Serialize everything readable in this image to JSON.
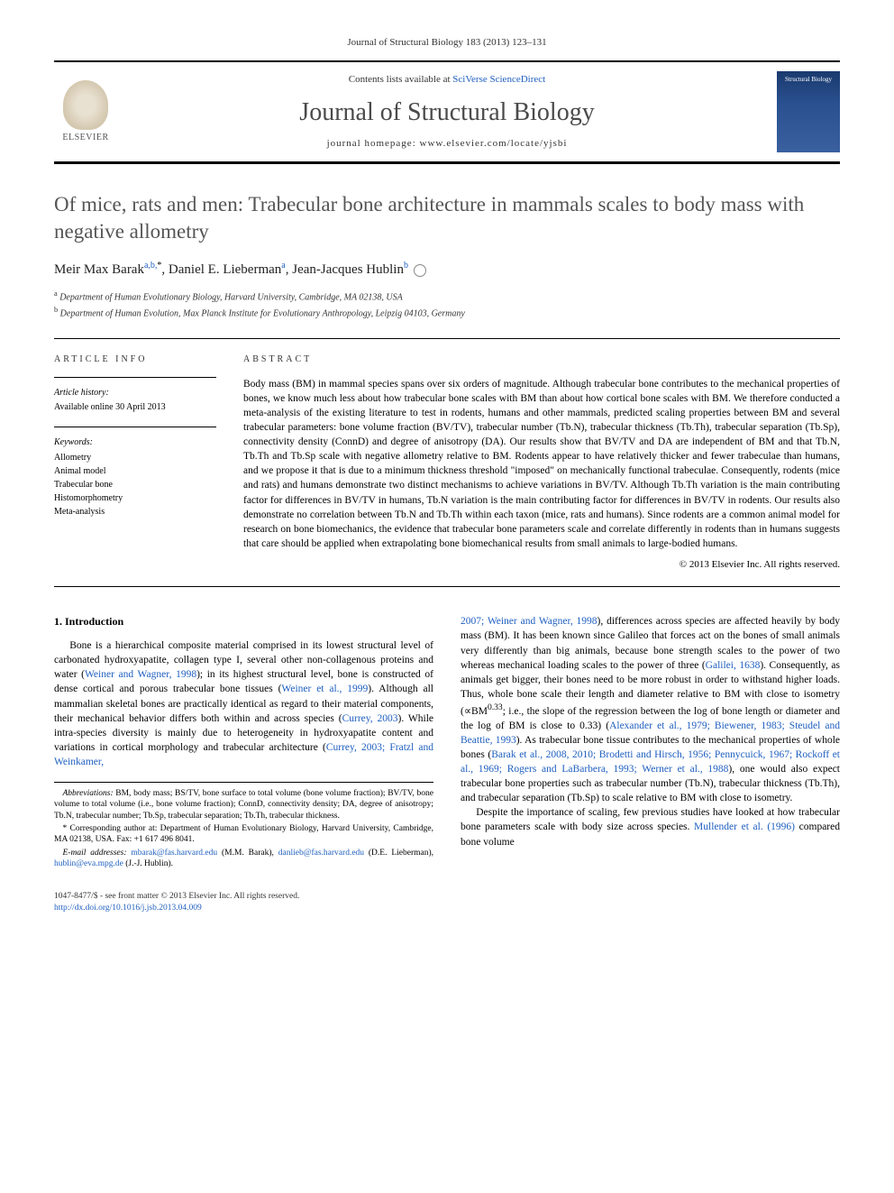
{
  "citation": "Journal of Structural Biology 183 (2013) 123–131",
  "banner": {
    "contents_line_prefix": "Contents lists available at ",
    "contents_line_link": "SciVerse ScienceDirect",
    "journal_name": "Journal of Structural Biology",
    "homepage_prefix": "journal homepage: ",
    "homepage_url": "www.elsevier.com/locate/yjsbi",
    "publisher_name": "ELSEVIER",
    "cover_label": "Structural Biology"
  },
  "article": {
    "title": "Of mice, rats and men: Trabecular bone architecture in mammals scales to body mass with negative allometry",
    "authors_html": "Meir Max Barak",
    "author1_name": "Meir Max Barak",
    "author1_aff": "a,b,",
    "author1_mark": "*",
    "author2_name": "Daniel E. Lieberman",
    "author2_aff": "a",
    "author3_name": "Jean-Jacques Hublin",
    "author3_aff": "b",
    "aff_a": "Department of Human Evolutionary Biology, Harvard University, Cambridge, MA 02138, USA",
    "aff_b": "Department of Human Evolution, Max Planck Institute for Evolutionary Anthropology, Leipzig 04103, Germany"
  },
  "info": {
    "section_label": "article info",
    "history_label": "Article history:",
    "history_text": "Available online 30 April 2013",
    "keywords_label": "Keywords:",
    "keywords": [
      "Allometry",
      "Animal model",
      "Trabecular bone",
      "Histomorphometry",
      "Meta-analysis"
    ]
  },
  "abstract": {
    "section_label": "abstract",
    "text": "Body mass (BM) in mammal species spans over six orders of magnitude. Although trabecular bone contributes to the mechanical properties of bones, we know much less about how trabecular bone scales with BM than about how cortical bone scales with BM. We therefore conducted a meta-analysis of the existing literature to test in rodents, humans and other mammals, predicted scaling properties between BM and several trabecular parameters: bone volume fraction (BV/TV), trabecular number (Tb.N), trabecular thickness (Tb.Th), trabecular separation (Tb.Sp), connectivity density (ConnD) and degree of anisotropy (DA). Our results show that BV/TV and DA are independent of BM and that Tb.N, Tb.Th and Tb.Sp scale with negative allometry relative to BM. Rodents appear to have relatively thicker and fewer trabeculae than humans, and we propose it that is due to a minimum thickness threshold \"imposed\" on mechanically functional trabeculae. Consequently, rodents (mice and rats) and humans demonstrate two distinct mechanisms to achieve variations in BV/TV. Although Tb.Th variation is the main contributing factor for differences in BV/TV in humans, Tb.N variation is the main contributing factor for differences in BV/TV in rodents. Our results also demonstrate no correlation between Tb.N and Tb.Th within each taxon (mice, rats and humans). Since rodents are a common animal model for research on bone biomechanics, the evidence that trabecular bone parameters scale and correlate differently in rodents than in humans suggests that care should be applied when extrapolating bone biomechanical results from small animals to large-bodied humans.",
    "copyright": "© 2013 Elsevier Inc. All rights reserved."
  },
  "body": {
    "section_heading": "1. Introduction",
    "para1_pre": "Bone is a hierarchical composite material comprised in its lowest structural level of carbonated hydroxyapatite, collagen type I, several other non-collagenous proteins and water (",
    "cite1": "Weiner and Wagner, 1998",
    "para1_mid1": "); in its highest structural level, bone is constructed of dense cortical and porous trabecular bone tissues (",
    "cite2": "Weiner et al., 1999",
    "para1_mid2": "). Although all mammalian skeletal bones are practically identical as regard to their material components, their mechanical behavior differs both within and across species (",
    "cite3": "Currey, 2003",
    "para1_mid3": "). While intra-species diversity is mainly due to heterogeneity in hydroxyapatite content and variations in cortical morphology and trabecular architecture (",
    "cite4": "Currey, 2003; Fratzl and Weinkamer,",
    "para2_pre": "",
    "cite5": "2007; Weiner and Wagner, 1998",
    "para2_mid1": "), differences across species are affected heavily by body mass (BM). It has been known since Galileo that forces act on the bones of small animals very differently than big animals, because bone strength scales to the power of two whereas mechanical loading scales to the power of three (",
    "cite6": "Galilei, 1638",
    "para2_mid2": "). Consequently, as animals get bigger, their bones need to be more robust in order to withstand higher loads. Thus, whole bone scale their length and diameter relative to BM with close to isometry (∝BM",
    "exp1": "0.33",
    "para2_mid3": "; i.e., the slope of the regression between the log of bone length or diameter and the log of BM is close to 0.33) (",
    "cite7": "Alexander et al., 1979; Biewener, 1983; Steudel and Beattie, 1993",
    "para2_mid4": "). As trabecular bone tissue contributes to the mechanical properties of whole bones (",
    "cite8": "Barak et al., 2008, 2010; Brodetti and Hirsch, 1956; Pennycuick, 1967; Rockoff et al., 1969; Rogers and LaBarbera, 1993; Werner et al., 1988",
    "para2_mid5": "), one would also expect trabecular bone properties such as trabecular number (Tb.N), trabecular thickness (Tb.Th), and trabecular separation (Tb.Sp) to scale relative to BM with close to isometry.",
    "para3_pre": "Despite the importance of scaling, few previous studies have looked at how trabecular bone parameters scale with body size across species. ",
    "cite9": "Mullender et al. (1996)",
    "para3_post": " compared bone volume"
  },
  "footnotes": {
    "abbrev_label": "Abbreviations:",
    "abbrev_text": " BM, body mass; BS/TV, bone surface to total volume (bone volume fraction); BV/TV, bone volume to total volume (i.e., bone volume fraction); ConnD, connectivity density; DA, degree of anisotropy; Tb.N, trabecular number; Tb.Sp, trabecular separation; Tb.Th, trabecular thickness.",
    "corr_label": "* Corresponding author at: ",
    "corr_text": "Department of Human Evolutionary Biology, Harvard University, Cambridge, MA 02138, USA. Fax: +1 617 496 8041.",
    "email_label": "E-mail addresses: ",
    "email1": "mbarak@fas.harvard.edu",
    "email1_who": " (M.M. Barak), ",
    "email2": "danlieb@fas.harvard.edu",
    "email2_who": " (D.E. Lieberman), ",
    "email3": "hublin@eva.mpg.de",
    "email3_who": " (J.-J. Hublin)."
  },
  "footer": {
    "issn_line": "1047-8477/$ - see front matter © 2013 Elsevier Inc. All rights reserved.",
    "doi": "http://dx.doi.org/10.1016/j.jsb.2013.04.009"
  },
  "colors": {
    "link": "#2060c0",
    "title_gray": "#555555",
    "rule": "#000000"
  },
  "typography": {
    "body_pt": 11.5,
    "title_pt": 23,
    "journal_name_pt": 28,
    "footnote_pt": 9.5
  }
}
